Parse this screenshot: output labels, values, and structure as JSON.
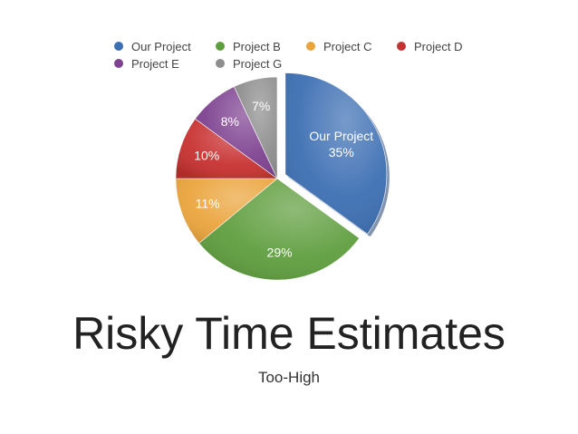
{
  "chart_data": {
    "type": "pie",
    "title": "Risky Time Estimates",
    "subtitle": "Too-High",
    "legend_position": "top",
    "slices": [
      {
        "name": "Our Project",
        "value": 35,
        "label": "35%",
        "color": "#3d6fb3"
      },
      {
        "name": "Project B",
        "value": 29,
        "label": "29%",
        "color": "#5f9e3e"
      },
      {
        "name": "Project C",
        "value": 11,
        "label": "11%",
        "color": "#eba43c"
      },
      {
        "name": "Project D",
        "value": 10,
        "label": "10%",
        "color": "#c83131"
      },
      {
        "name": "Project E",
        "value": 8,
        "label": "8%",
        "color": "#7e4290"
      },
      {
        "name": "Project G",
        "value": 7,
        "label": "7%",
        "color": "#8e8e8e"
      }
    ]
  }
}
